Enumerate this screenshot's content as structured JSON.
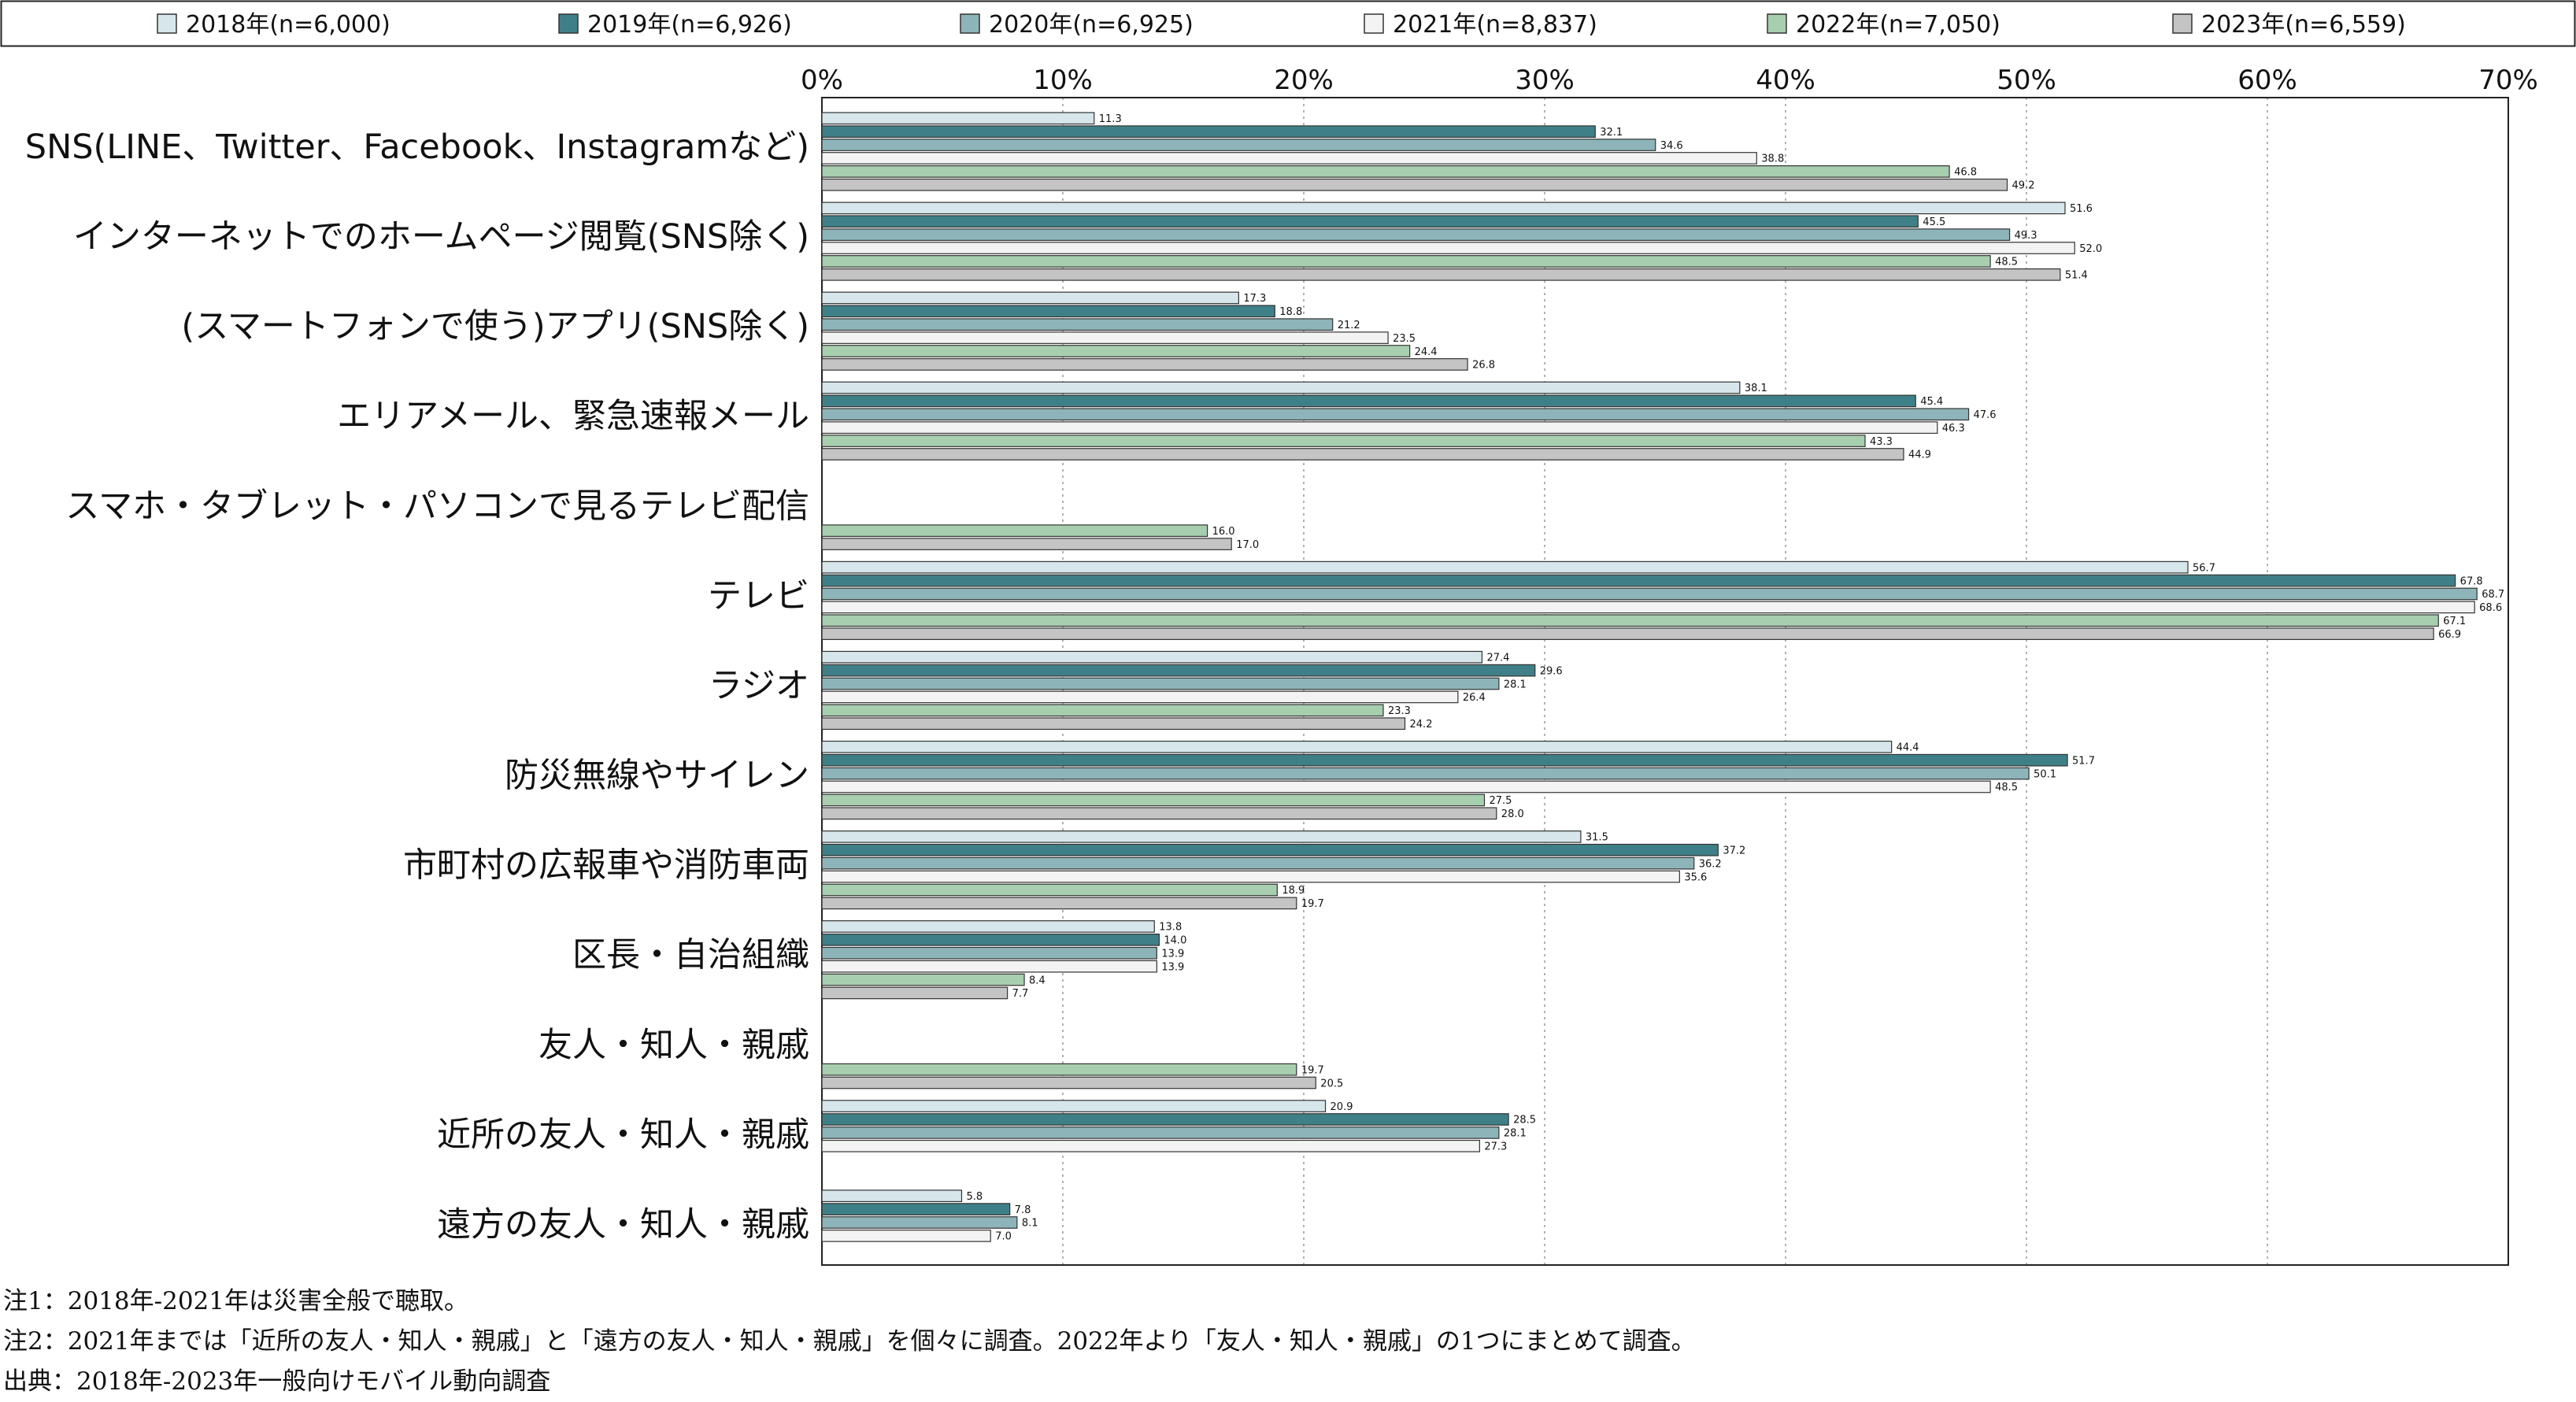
{
  "chart_data": {
    "type": "bar",
    "orientation": "horizontal",
    "x_ticks": [
      "0%",
      "10%",
      "20%",
      "30%",
      "40%",
      "50%",
      "60%",
      "70%"
    ],
    "xlim": [
      0,
      70
    ],
    "grid": "vertical dotted",
    "legend_position": "top",
    "categories": [
      "SNS(LINE、Twitter、Facebook、Instagramなど)",
      "インターネットでのホームページ閲覧(SNS除く)",
      "(スマートフォンで使う)アプリ(SNS除く)",
      "エリアメール、緊急速報メール",
      "スマホ・タブレット・パソコンで見るテレビ配信",
      "テレビ",
      "ラジオ",
      "防災無線やサイレン",
      "市町村の広報車や消防車両",
      "区長・自治組織",
      "友人・知人・親戚",
      "近所の友人・知人・親戚",
      "遠方の友人・知人・親戚"
    ],
    "series": [
      {
        "name": "2018年(n=6,000)",
        "color": "#d6e6ea",
        "values": [
          11.3,
          51.6,
          17.3,
          38.1,
          null,
          56.7,
          27.4,
          44.4,
          31.5,
          13.8,
          null,
          20.9,
          5.8
        ]
      },
      {
        "name": "2019年(n=6,926)",
        "color": "#3f8088",
        "values": [
          32.1,
          45.5,
          18.8,
          45.4,
          null,
          67.8,
          29.6,
          51.7,
          37.2,
          14.0,
          null,
          28.5,
          7.8
        ]
      },
      {
        "name": "2020年(n=6,925)",
        "color": "#8db4b9",
        "values": [
          34.6,
          49.3,
          21.2,
          47.6,
          null,
          68.7,
          28.1,
          50.1,
          36.2,
          13.9,
          null,
          28.1,
          8.1
        ]
      },
      {
        "name": "2021年(n=8,837)",
        "color": "#f3f3f3",
        "values": [
          38.8,
          52.0,
          23.5,
          46.3,
          null,
          68.6,
          26.4,
          48.5,
          35.6,
          13.9,
          null,
          27.3,
          7.0
        ]
      },
      {
        "name": "2022年(n=7,050)",
        "color": "#a8ceb0",
        "values": [
          46.8,
          48.5,
          24.4,
          43.3,
          16.0,
          67.1,
          23.3,
          27.5,
          18.9,
          8.4,
          19.7,
          null,
          null
        ]
      },
      {
        "name": "2023年(n=6,559)",
        "color": "#c4c4c4",
        "values": [
          49.2,
          51.4,
          26.8,
          44.9,
          17.0,
          66.9,
          24.2,
          28.0,
          19.7,
          7.7,
          20.5,
          null,
          null
        ]
      }
    ]
  },
  "notes": [
    "注1：2018年-2021年は災害全般で聴取。",
    "注2：2021年までは「近所の友人・知人・親戚」と「遠方の友人・知人・親戚」を個々に調査。2022年より「友人・知人・親戚」の1つにまとめて調査。",
    "出典：2018年-2023年一般向けモバイル動向調査"
  ]
}
